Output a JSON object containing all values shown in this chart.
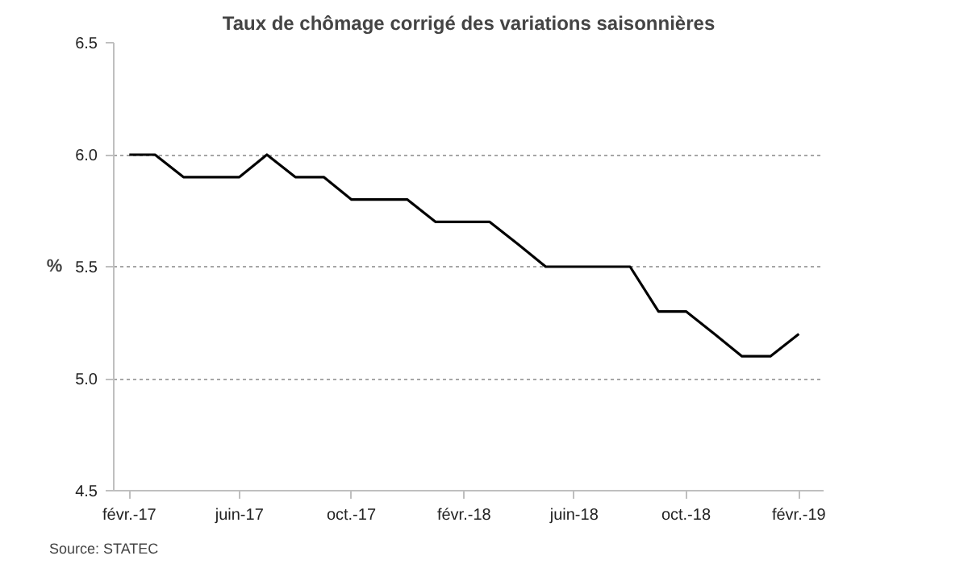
{
  "chart_data": {
    "type": "line",
    "title": "Taux de chômage corrigé des variations saisonnières",
    "ylabel": "%",
    "x": [
      "2017-02",
      "2017-03",
      "2017-04",
      "2017-05",
      "2017-06",
      "2017-07",
      "2017-08",
      "2017-09",
      "2017-10",
      "2017-11",
      "2017-12",
      "2018-01",
      "2018-02",
      "2018-03",
      "2018-04",
      "2018-05",
      "2018-06",
      "2018-07",
      "2018-08",
      "2018-09",
      "2018-10",
      "2018-11",
      "2018-12",
      "2019-01",
      "2019-02"
    ],
    "series": [
      {
        "color": "#000000",
        "values": [
          6.0,
          6.0,
          5.9,
          5.9,
          5.9,
          6.0,
          5.9,
          5.9,
          5.8,
          5.8,
          5.8,
          5.7,
          5.7,
          5.7,
          5.6,
          5.5,
          5.5,
          5.5,
          5.5,
          5.3,
          5.3,
          5.2,
          5.1,
          5.1,
          5.2
        ]
      }
    ],
    "xlim": [
      "2017-01-15",
      "2019-02-28"
    ],
    "xticks": [
      {
        "value": "2017-02",
        "label": "févr.-17"
      },
      {
        "value": "2017-06",
        "label": "juin-17"
      },
      {
        "value": "2017-10",
        "label": "oct.-17"
      },
      {
        "value": "2018-02",
        "label": "févr.-18"
      },
      {
        "value": "2018-06",
        "label": "juin-18"
      },
      {
        "value": "2018-10",
        "label": "oct.-18"
      },
      {
        "value": "2019-02",
        "label": "févr.-19"
      }
    ],
    "ylim": [
      4.5,
      6.5
    ],
    "yticks": [
      {
        "value": 4.5,
        "label": "4.5"
      },
      {
        "value": 5,
        "label": "5.0"
      },
      {
        "value": 5.5,
        "label": "5.5"
      },
      {
        "value": 6,
        "label": "6.0"
      },
      {
        "value": 6.5,
        "label": "6.5"
      }
    ],
    "grid": "y",
    "marker": "none",
    "line_style": "solid",
    "annotations": [
      "Source: STATEC"
    ]
  }
}
